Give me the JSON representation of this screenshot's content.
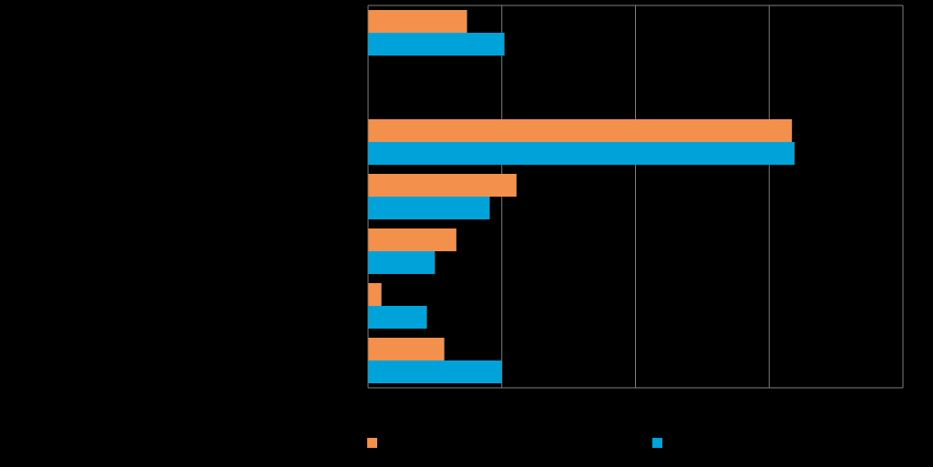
{
  "chart_data": {
    "type": "bar",
    "orientation": "horizontal",
    "categories": [
      "",
      "",
      "",
      "",
      "",
      "",
      ""
    ],
    "series": [
      {
        "values": [
          7.4,
          0,
          31.7,
          11.1,
          6.6,
          1.0,
          5.7
        ],
        "color": "#F2904C"
      },
      {
        "values": [
          10.2,
          0,
          31.9,
          9.1,
          5.0,
          4.4,
          10.0
        ],
        "color": "#00A3D9"
      }
    ],
    "xlim": [
      0,
      40
    ],
    "grid": true,
    "legend": "bottom"
  },
  "legend": {
    "items": [
      {
        "label": "",
        "color": "#F2904C"
      },
      {
        "label": "",
        "color": "#00A3D9"
      }
    ]
  },
  "colors": {
    "background": "#000000",
    "gridline": "#7f7f7f",
    "axis": "#7f7f7f"
  }
}
